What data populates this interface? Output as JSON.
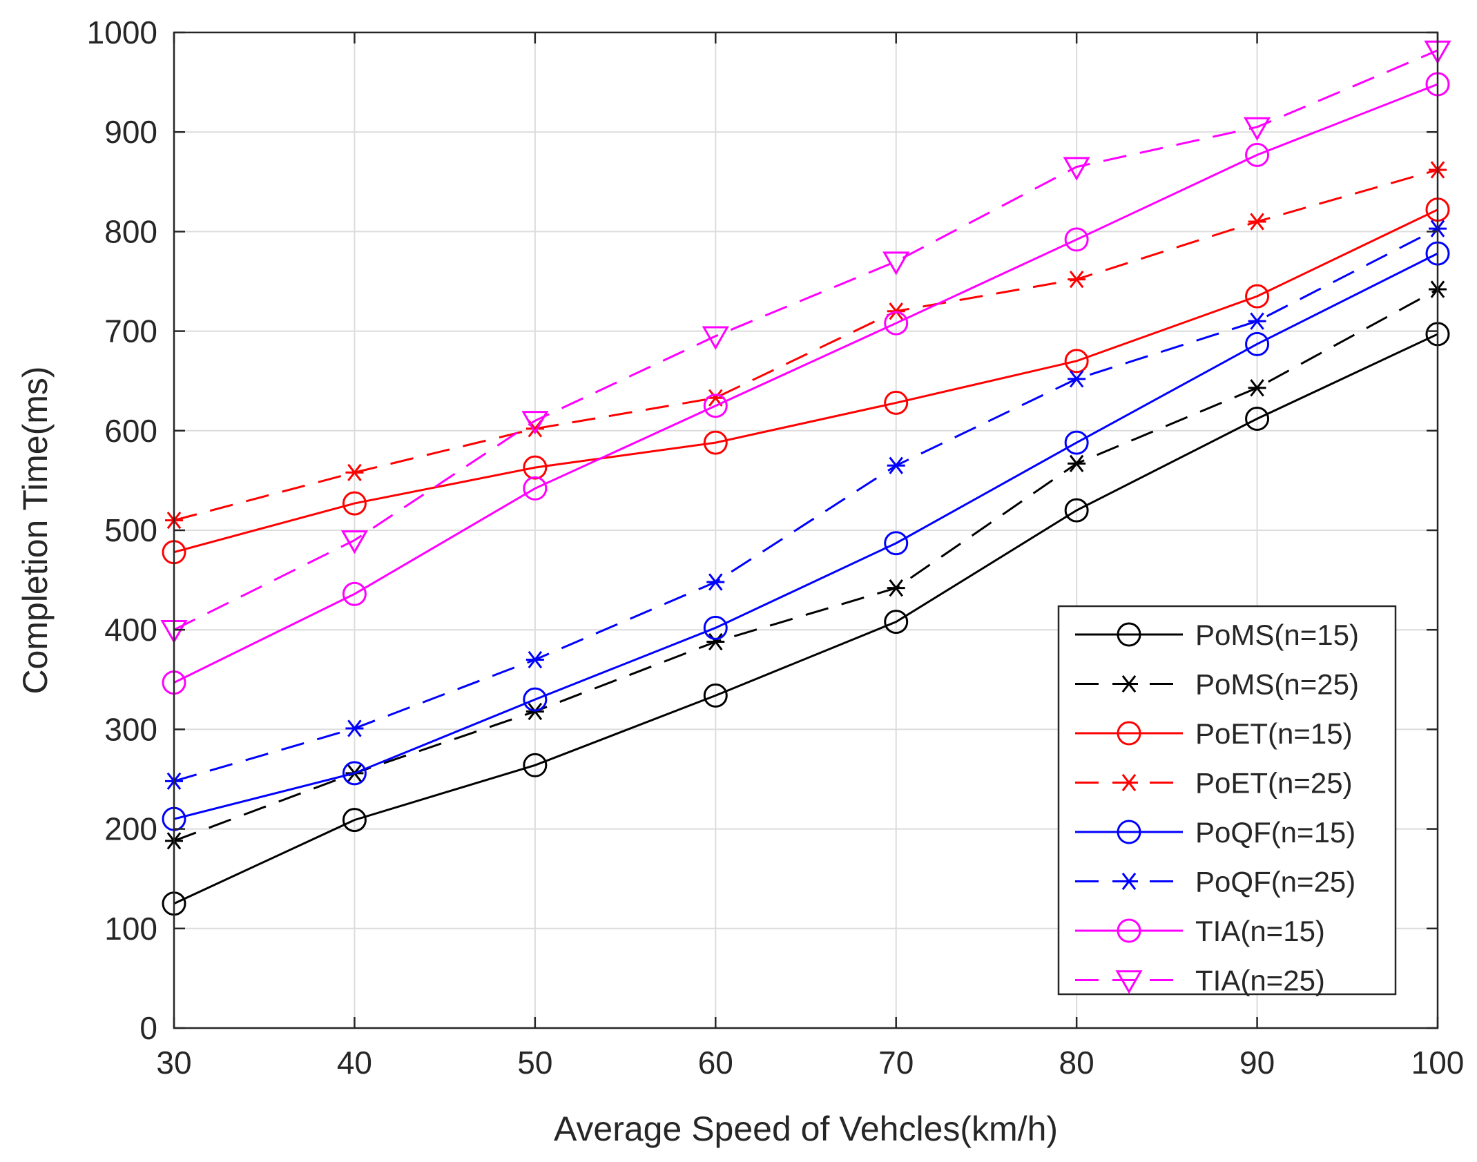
{
  "chart_data": {
    "type": "line",
    "title": "",
    "xlabel": "Average Speed of Vehcles(km/h)",
    "ylabel": "Completion Time(ms)",
    "xlim": [
      30,
      100
    ],
    "ylim": [
      0,
      1000
    ],
    "xticks": [
      30,
      40,
      50,
      60,
      70,
      80,
      90,
      100
    ],
    "yticks": [
      0,
      100,
      200,
      300,
      400,
      500,
      600,
      700,
      800,
      900,
      1000
    ],
    "grid": true,
    "legend_position": "bottom-right",
    "x": [
      30,
      40,
      50,
      60,
      70,
      80,
      90,
      100
    ],
    "series": [
      {
        "name": "PoMS(n=15)",
        "color": "#000000",
        "dash": "solid",
        "marker": "circle",
        "values": [
          125,
          209,
          264,
          334,
          408,
          520,
          612,
          697
        ]
      },
      {
        "name": "PoMS(n=25)",
        "color": "#000000",
        "dash": "dashed",
        "marker": "asterisk",
        "values": [
          188,
          256,
          318,
          388,
          442,
          567,
          643,
          742
        ]
      },
      {
        "name": "PoET(n=15)",
        "color": "#ff0000",
        "dash": "solid",
        "marker": "circle",
        "values": [
          478,
          527,
          563,
          588,
          628,
          670,
          735,
          822
        ]
      },
      {
        "name": "PoET(n=25)",
        "color": "#ff0000",
        "dash": "dashed",
        "marker": "asterisk",
        "values": [
          510,
          558,
          602,
          633,
          720,
          752,
          810,
          862
        ]
      },
      {
        "name": "PoQF(n=15)",
        "color": "#0000ff",
        "dash": "solid",
        "marker": "circle",
        "values": [
          210,
          256,
          330,
          402,
          487,
          588,
          687,
          778
        ]
      },
      {
        "name": "PoQF(n=25)",
        "color": "#0000ff",
        "dash": "dashed",
        "marker": "asterisk",
        "values": [
          248,
          301,
          370,
          448,
          565,
          652,
          710,
          803
        ]
      },
      {
        "name": "TIA(n=15)",
        "color": "#ff00ff",
        "dash": "solid",
        "marker": "circle",
        "values": [
          347,
          436,
          542,
          625,
          708,
          792,
          877,
          948
        ]
      },
      {
        "name": "TIA(n=25)",
        "color": "#ff00ff",
        "dash": "dashed",
        "marker": "triangle-down",
        "values": [
          400,
          490,
          610,
          695,
          770,
          865,
          905,
          982
        ]
      }
    ]
  }
}
